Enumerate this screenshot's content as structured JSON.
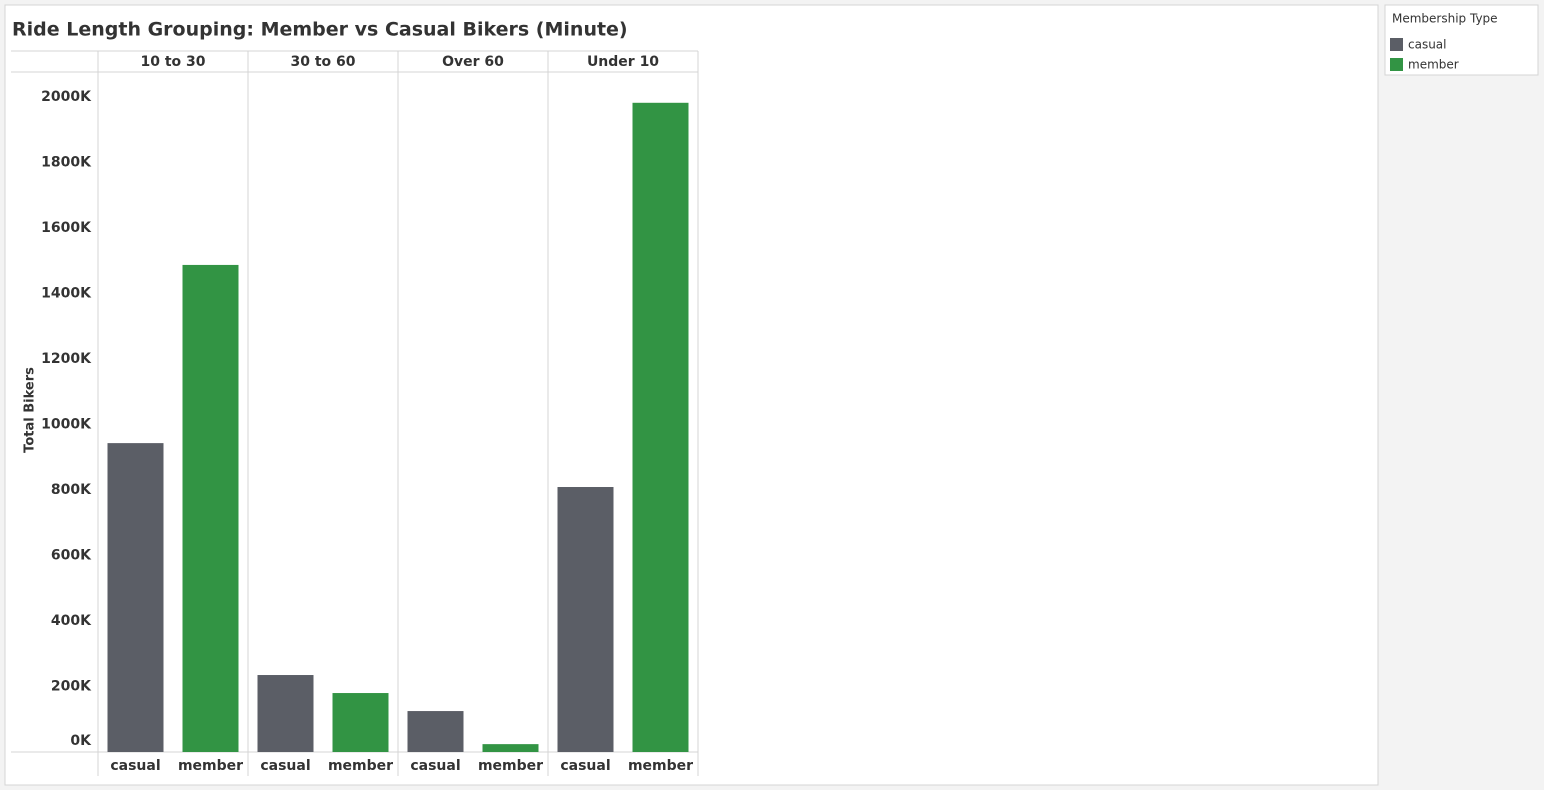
{
  "chart_data": {
    "type": "bar",
    "title": "Ride Length Grouping: Member vs Casual Bikers (Minute)",
    "y_label": "Total Bikers",
    "legend_title": "Membership Type",
    "legend": "top-right",
    "grid": false,
    "categories": [
      "10 to 30",
      "30 to 60",
      "Over 60",
      "Under 10"
    ],
    "series": [
      {
        "name": "casual",
        "color": "#5b5e66",
        "values": [
          943000,
          235000,
          125000,
          809000
        ]
      },
      {
        "name": "member",
        "color": "#329444",
        "values": [
          1487000,
          180000,
          24000,
          1982000
        ]
      }
    ],
    "ylim": [
      0,
      2076000
    ],
    "yticks": [
      {
        "value": 0,
        "label": "0K"
      },
      {
        "value": 200000,
        "label": "200K"
      },
      {
        "value": 400000,
        "label": "400K"
      },
      {
        "value": 600000,
        "label": "600K"
      },
      {
        "value": 800000,
        "label": "800K"
      },
      {
        "value": 1000000,
        "label": "1000K"
      },
      {
        "value": 1200000,
        "label": "1200K"
      },
      {
        "value": 1400000,
        "label": "1400K"
      },
      {
        "value": 1600000,
        "label": "1600K"
      },
      {
        "value": 1800000,
        "label": "1800K"
      },
      {
        "value": 2000000,
        "label": "2000K"
      }
    ]
  }
}
